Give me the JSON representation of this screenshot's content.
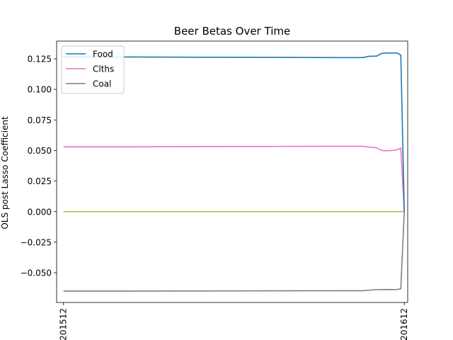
{
  "chart_data": {
    "type": "line",
    "title": "Beer  Betas Over Time",
    "xlabel": "",
    "ylabel": "OLS post Lasso Coefficient",
    "ylim": [
      -0.0743,
      0.1395
    ],
    "xlim": [
      -1,
      101
    ],
    "x_ticks": [
      {
        "x": 1,
        "label": "201512"
      },
      {
        "x": 100,
        "label": "201612"
      }
    ],
    "y_ticks": [
      -0.05,
      -0.025,
      0.0,
      0.025,
      0.05,
      0.075,
      0.1,
      0.125
    ],
    "y_tick_labels": [
      "−0.050",
      "−0.025",
      "0.000",
      "0.025",
      "0.050",
      "0.075",
      "0.100",
      "0.125"
    ],
    "grid": false,
    "legend_position": "top-left",
    "series": [
      {
        "name": "Food",
        "color": "#1f77b4",
        "points": [
          [
            1,
            0.1265
          ],
          [
            20,
            0.1265
          ],
          [
            40,
            0.1263
          ],
          [
            60,
            0.1262
          ],
          [
            80,
            0.126
          ],
          [
            88,
            0.126
          ],
          [
            89.5,
            0.127
          ],
          [
            92,
            0.1272
          ],
          [
            93.5,
            0.1295
          ],
          [
            95,
            0.1298
          ],
          [
            98,
            0.1297
          ],
          [
            99,
            0.128
          ],
          [
            100,
            0.0
          ]
        ]
      },
      {
        "name": "Clths",
        "color": "#e377c2",
        "points": [
          [
            1,
            0.053
          ],
          [
            20,
            0.053
          ],
          [
            40,
            0.0532
          ],
          [
            60,
            0.0533
          ],
          [
            80,
            0.0535
          ],
          [
            88,
            0.0535
          ],
          [
            89.5,
            0.0528
          ],
          [
            92,
            0.0522
          ],
          [
            93.5,
            0.05
          ],
          [
            95,
            0.0498
          ],
          [
            97.5,
            0.0502
          ],
          [
            99,
            0.052
          ],
          [
            100,
            0.0
          ]
        ]
      },
      {
        "name": "Coal",
        "color": "#7f7f7f",
        "points": [
          [
            1,
            -0.065
          ],
          [
            20,
            -0.065
          ],
          [
            40,
            -0.0649
          ],
          [
            60,
            -0.0648
          ],
          [
            80,
            -0.0647
          ],
          [
            88,
            -0.0647
          ],
          [
            89.5,
            -0.0643
          ],
          [
            92,
            -0.0638
          ],
          [
            95,
            -0.0637
          ],
          [
            97.5,
            -0.0638
          ],
          [
            99,
            -0.0632
          ],
          [
            100,
            0.0
          ]
        ]
      },
      {
        "color": "#17becf",
        "points": [
          [
            1,
            0.0
          ],
          [
            100,
            0.0
          ]
        ]
      },
      {
        "color": "#bcbd22",
        "points": [
          [
            1,
            0.0
          ],
          [
            100,
            0.0
          ]
        ]
      }
    ]
  }
}
